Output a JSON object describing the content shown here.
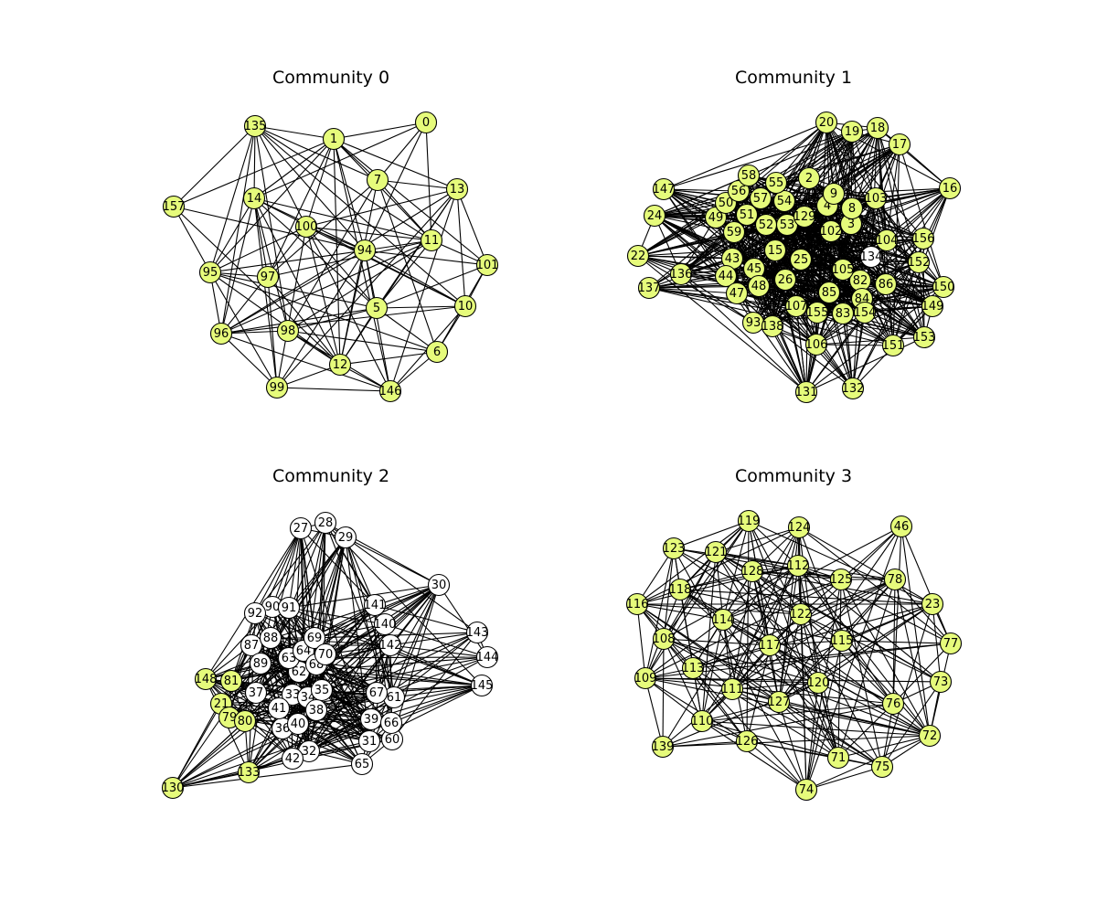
{
  "figure": {
    "node_fill_highlight": "#e6fb7b",
    "node_fill_default": "#ffffff",
    "edge_color": "#000000",
    "panels": [
      {
        "title": "Community 0",
        "highlight_all": true,
        "nodes": [
          "0",
          "1",
          "5",
          "6",
          "7",
          "10",
          "11",
          "12",
          "13",
          "14",
          "94",
          "95",
          "96",
          "97",
          "98",
          "99",
          "100",
          "101",
          "135",
          "146",
          "157"
        ],
        "edge_density": 0.6
      },
      {
        "title": "Community 1",
        "nodes": [
          "2",
          "3",
          "4",
          "8",
          "9",
          "15",
          "16",
          "17",
          "18",
          "19",
          "20",
          "22",
          "24",
          "25",
          "26",
          "43",
          "44",
          "45",
          "47",
          "48",
          "49",
          "50",
          "51",
          "52",
          "53",
          "54",
          "55",
          "56",
          "57",
          "58",
          "59",
          "82",
          "83",
          "84",
          "85",
          "86",
          "93",
          "102",
          "103",
          "104",
          "105",
          "106",
          "107",
          "129",
          "131",
          "132",
          "134",
          "136",
          "137",
          "138",
          "147",
          "149",
          "150",
          "151",
          "152",
          "153",
          "154",
          "155",
          "156"
        ],
        "white_nodes": [
          "134"
        ],
        "edge_density": 0.45
      },
      {
        "title": "Community 2",
        "nodes": [
          "21",
          "27",
          "28",
          "29",
          "30",
          "31",
          "32",
          "33",
          "34",
          "35",
          "36",
          "37",
          "38",
          "39",
          "40",
          "41",
          "42",
          "60",
          "61",
          "62",
          "63",
          "64",
          "65",
          "66",
          "67",
          "68",
          "69",
          "70",
          "79",
          "80",
          "81",
          "87",
          "88",
          "89",
          "90",
          "91",
          "92",
          "130",
          "133",
          "140",
          "141",
          "142",
          "143",
          "144",
          "145",
          "148"
        ],
        "highlight_nodes": [
          "21",
          "79",
          "80",
          "81",
          "130",
          "133",
          "148"
        ],
        "edge_density": 0.35
      },
      {
        "title": "Community 3",
        "highlight_all": true,
        "nodes": [
          "23",
          "46",
          "71",
          "72",
          "73",
          "74",
          "75",
          "76",
          "77",
          "78",
          "108",
          "109",
          "110",
          "111",
          "112",
          "113",
          "114",
          "115",
          "116",
          "117",
          "118",
          "119",
          "120",
          "121",
          "122",
          "123",
          "124",
          "125",
          "126",
          "127",
          "128",
          "139"
        ],
        "edge_density": 0.5
      }
    ]
  }
}
